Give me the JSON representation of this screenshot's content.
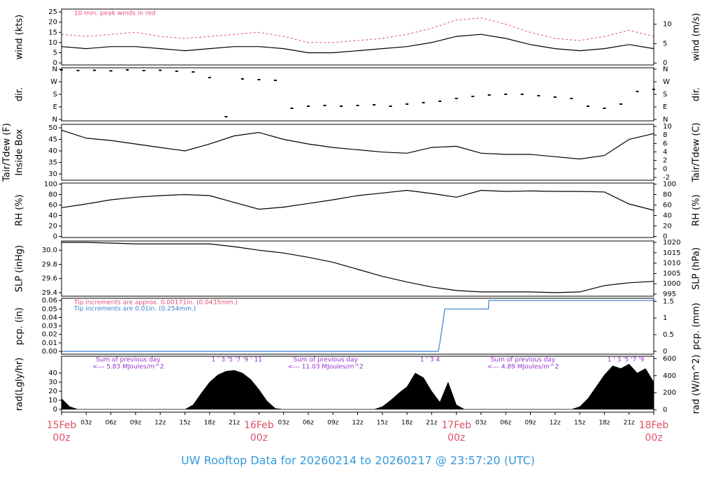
{
  "title": "UW Rooftop Data for 20260214  to  20260217 @ 23:57:20  (UTC)",
  "shared_x": {
    "xlim": [
      0,
      72
    ],
    "xticks": [
      {
        "value": 0,
        "label": "15Feb",
        "label2": "00z"
      },
      {
        "value": 3,
        "label": "03z"
      },
      {
        "value": 6,
        "label": "06z"
      },
      {
        "value": 9,
        "label": "09z"
      },
      {
        "value": 12,
        "label": "12z"
      },
      {
        "value": 15,
        "label": "15z"
      },
      {
        "value": 18,
        "label": "18z"
      },
      {
        "value": 21,
        "label": "21z"
      },
      {
        "value": 24,
        "label": "16Feb",
        "label2": "00z"
      },
      {
        "value": 27,
        "label": "03z"
      },
      {
        "value": 30,
        "label": "06z"
      },
      {
        "value": 33,
        "label": "09z"
      },
      {
        "value": 36,
        "label": "12z"
      },
      {
        "value": 39,
        "label": "15z"
      },
      {
        "value": 42,
        "label": "18z"
      },
      {
        "value": 45,
        "label": "21z"
      },
      {
        "value": 48,
        "label": "17Feb",
        "label2": "00z"
      },
      {
        "value": 51,
        "label": "03z"
      },
      {
        "value": 54,
        "label": "06z"
      },
      {
        "value": 57,
        "label": "09z"
      },
      {
        "value": 60,
        "label": "12z"
      },
      {
        "value": 63,
        "label": "15z"
      },
      {
        "value": 66,
        "label": "18z"
      },
      {
        "value": 69,
        "label": "21z"
      },
      {
        "value": 72,
        "label": "18Feb",
        "label2": "00z"
      }
    ]
  },
  "chart_data": [
    {
      "type": "line",
      "ylabel": [
        "wind (kts)"
      ],
      "y2label": "wind (m/s)",
      "ylim": [
        -1,
        26.4
      ],
      "yticks": [
        0,
        5,
        10,
        15,
        20,
        25
      ],
      "y2lim": [
        -0.5,
        13.9
      ],
      "y2ticks": [
        0,
        5,
        10
      ],
      "annotations": [
        {
          "text": "10 min. peak winds in red",
          "color": "#e05070"
        }
      ],
      "x": [
        0,
        3,
        6,
        9,
        12,
        15,
        18,
        21,
        24,
        27,
        30,
        33,
        36,
        39,
        42,
        45,
        48,
        51,
        54,
        57,
        60,
        63,
        66,
        69,
        72
      ],
      "series": [
        {
          "color": "#e05070",
          "style": "dashed",
          "values": [
            14,
            13,
            14,
            15,
            13,
            12,
            13,
            14,
            15,
            13,
            10,
            10,
            11,
            12,
            14,
            17,
            21,
            22,
            19,
            15,
            12,
            11,
            13,
            16,
            13
          ]
        },
        {
          "color": "#000000",
          "style": "solid",
          "values": [
            8,
            7,
            8,
            8,
            7,
            6,
            7,
            8,
            8,
            7,
            5,
            5,
            6,
            7,
            8,
            10,
            13,
            14,
            12,
            9,
            7,
            6,
            7,
            9,
            7
          ]
        }
      ]
    },
    {
      "type": "scatter",
      "ylabel": [
        "dir."
      ],
      "y2label": "dir.",
      "ylim": [
        -10,
        370
      ],
      "yticks": [
        {
          "value": 0,
          "label": "N"
        },
        {
          "value": 90,
          "label": "E"
        },
        {
          "value": 180,
          "label": "S"
        },
        {
          "value": 270,
          "label": "W"
        },
        {
          "value": 360,
          "label": "N"
        }
      ],
      "y2lim": [
        -10,
        370
      ],
      "y2ticks": [
        {
          "value": 0,
          "label": "N"
        },
        {
          "value": 90,
          "label": "E"
        },
        {
          "value": 180,
          "label": "S"
        },
        {
          "value": 270,
          "label": "W"
        },
        {
          "value": 360,
          "label": "N"
        }
      ],
      "x": [
        0,
        2,
        4,
        6,
        8,
        10,
        12,
        14,
        16,
        18,
        20,
        22,
        24,
        26,
        28,
        30,
        32,
        34,
        36,
        38,
        40,
        42,
        44,
        46,
        48,
        50,
        52,
        54,
        56,
        58,
        60,
        62,
        64,
        66,
        68,
        70,
        72
      ],
      "series": [
        {
          "color": "#000000",
          "values": [
            355,
            350,
            352,
            348,
            355,
            350,
            352,
            345,
            340,
            300,
            20,
            290,
            285,
            280,
            80,
            95,
            100,
            95,
            100,
            105,
            95,
            110,
            120,
            130,
            150,
            165,
            175,
            180,
            180,
            170,
            160,
            150,
            95,
            80,
            110,
            200,
            215
          ]
        }
      ]
    },
    {
      "type": "line",
      "ylabel": [
        "Tair/Tdew (F)",
        "Inside Box"
      ],
      "y2label": "Tair/Tdew (C)",
      "ylim": [
        27.3,
        51.5
      ],
      "yticks": [
        30,
        35,
        40,
        45,
        50
      ],
      "y2lim": [
        -2.66,
        10.5
      ],
      "y2ticks": [
        -2,
        0,
        2,
        4,
        6,
        8,
        10
      ],
      "x": [
        0,
        3,
        6,
        9,
        12,
        15,
        18,
        21,
        24,
        27,
        30,
        33,
        36,
        39,
        42,
        45,
        48,
        51,
        54,
        57,
        60,
        63,
        66,
        69,
        72
      ],
      "series": [
        {
          "color": "#000000",
          "style": "solid",
          "values": [
            49,
            45.5,
            44.5,
            43,
            41.5,
            40,
            43,
            46.5,
            48,
            45,
            43,
            41.5,
            40.5,
            39.5,
            39,
            41.5,
            42,
            39,
            38.5,
            38.5,
            37.5,
            36.5,
            38,
            45,
            47.5
          ]
        }
      ]
    },
    {
      "type": "line",
      "ylabel": [
        "RH (%)"
      ],
      "y2label": "RH (%)",
      "ylim": [
        -2,
        102
      ],
      "yticks": [
        0,
        20,
        40,
        60,
        80,
        100
      ],
      "y2lim": [
        -2,
        102
      ],
      "y2ticks": [
        0,
        20,
        40,
        60,
        80,
        100
      ],
      "x": [
        0,
        3,
        6,
        9,
        12,
        15,
        18,
        21,
        24,
        27,
        30,
        33,
        36,
        39,
        42,
        45,
        48,
        51,
        54,
        57,
        60,
        63,
        66,
        69,
        72
      ],
      "series": [
        {
          "color": "#000000",
          "style": "solid",
          "values": [
            55,
            62,
            70,
            75,
            78,
            80,
            78,
            65,
            52,
            56,
            63,
            70,
            78,
            83,
            88,
            82,
            75,
            88,
            86,
            87,
            86,
            86,
            85,
            62,
            50
          ]
        }
      ]
    },
    {
      "type": "line",
      "ylabel": [
        "SLP (inHg)"
      ],
      "y2label": "SLP (hPa)",
      "ylim": [
        29.35,
        30.13
      ],
      "yticks": [
        29.4,
        29.6,
        29.8,
        {
          "value": 30,
          "label": "30.0"
        }
      ],
      "y2lim": [
        994,
        1020.7
      ],
      "y2ticks": [
        995,
        1000,
        1005,
        1010,
        1015,
        1020
      ],
      "x": [
        0,
        3,
        6,
        9,
        12,
        15,
        18,
        21,
        24,
        27,
        30,
        33,
        36,
        39,
        42,
        45,
        48,
        51,
        54,
        57,
        60,
        63,
        66,
        69,
        72
      ],
      "series": [
        {
          "color": "#000000",
          "style": "solid",
          "values": [
            30.11,
            30.11,
            30.1,
            30.09,
            30.09,
            30.09,
            30.09,
            30.05,
            30.0,
            29.96,
            29.9,
            29.83,
            29.73,
            29.63,
            29.55,
            29.48,
            29.43,
            29.41,
            29.41,
            29.41,
            29.4,
            29.41,
            29.5,
            29.54,
            29.56
          ]
        }
      ]
    },
    {
      "type": "line",
      "ylabel": [
        "pcp. (in)"
      ],
      "y2label": "pcp. (mm)",
      "ylim": [
        -0.0033,
        0.0626
      ],
      "yticks": [
        {
          "value": 0,
          "label": "0.00"
        },
        0.01,
        0.02,
        0.03,
        0.04,
        0.05,
        0.06
      ],
      "y2lim": [
        -0.084,
        1.59
      ],
      "y2ticks": [
        0,
        0.5,
        1,
        1.5
      ],
      "annotations": [
        {
          "text": "Tip increments are approx. 0.00171in. (0.0435mm.)",
          "color": "#e05070"
        },
        {
          "text": "Tip increments are 0.01in. (0.254mm.)",
          "color": "#3a7fd0"
        }
      ],
      "x": [
        0,
        45.8,
        46.0,
        46.3,
        46.6,
        51.9,
        51.95,
        72
      ],
      "series": [
        {
          "color": "#3a7fd0",
          "style": "solid",
          "values": [
            0,
            0,
            0.01,
            0.03,
            0.05,
            0.05,
            0.06,
            0.06
          ]
        }
      ]
    },
    {
      "type": "area",
      "ylabel": [
        "rad(Lgly/hr)"
      ],
      "y2label": "rad (W/m^2)",
      "ylim": [
        -3.1,
        58.5
      ],
      "yticks": [
        0,
        10,
        20,
        30,
        40
      ],
      "y2lim": [
        -27,
        627
      ],
      "y2ticks": [
        0,
        200,
        400,
        600
      ],
      "hour_marks": [
        {
          "x": 21.3,
          "text": "1  '  3  '5  '7  '9  '      11"
        },
        {
          "x": 44.8,
          "text": "1   '   3        4"
        },
        {
          "x": 68.6,
          "text": "1  '  3  '5  '7  '9"
        }
      ],
      "daily_sums": [
        {
          "x": 8.1,
          "text": "Sum of previous day",
          "value_text": "<--- 5.83 MJoules/m^2"
        },
        {
          "x": 32.1,
          "text": "Sum of previous day",
          "value_text": "<--- 11.03 MJoules/m^2"
        },
        {
          "x": 56.1,
          "text": "Sum of previous day",
          "value_text": "<--- 4.89 MJoules/m^2"
        }
      ],
      "x": [
        0,
        1,
        2,
        3,
        4,
        5,
        6,
        7,
        8,
        9,
        10,
        11,
        12,
        13,
        14,
        15,
        16,
        17,
        18,
        19,
        20,
        21,
        22,
        23,
        24,
        25,
        26,
        27,
        28,
        29,
        30,
        31,
        32,
        33,
        34,
        35,
        36,
        37,
        38,
        39,
        40,
        41,
        42,
        43,
        44,
        45,
        46,
        47,
        48,
        49,
        50,
        51,
        52,
        53,
        54,
        55,
        56,
        57,
        58,
        59,
        60,
        61,
        62,
        63,
        64,
        65,
        66,
        67,
        68,
        69,
        70,
        71,
        72
      ],
      "series": [
        {
          "color": "#000000",
          "values": [
            12,
            3,
            0,
            0,
            0,
            0,
            0,
            0,
            0,
            0,
            0,
            0,
            0,
            0,
            0,
            0,
            5,
            18,
            30,
            38,
            42,
            43,
            40,
            33,
            22,
            9,
            1,
            0,
            0,
            0,
            0,
            0,
            0,
            0,
            0,
            0,
            0,
            0,
            0,
            3,
            10,
            18,
            25,
            40,
            35,
            20,
            8,
            30,
            5,
            0,
            0,
            0,
            0,
            0,
            0,
            0,
            0,
            0,
            0,
            0,
            0,
            0,
            0,
            3,
            12,
            25,
            38,
            48,
            45,
            50,
            40,
            45,
            30
          ]
        }
      ]
    }
  ]
}
